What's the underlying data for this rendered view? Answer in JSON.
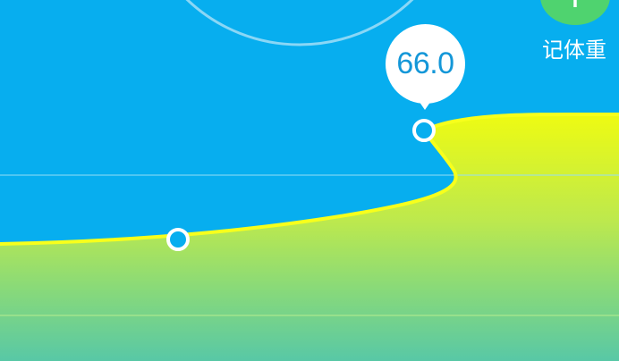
{
  "add_weight": {
    "icon": "plus-icon",
    "label": "记体重",
    "button_color": "#4fd36f"
  },
  "selected_point": {
    "value_label": "66.0"
  },
  "colors": {
    "background": "#07aeef",
    "line": "#f7ff1c",
    "fill_top": "#eefb12",
    "fill_bottom": "#58c8a6",
    "gridline": "#82d8f2",
    "bubble": "#ffffff",
    "bubble_text": "#1497d8"
  }
}
